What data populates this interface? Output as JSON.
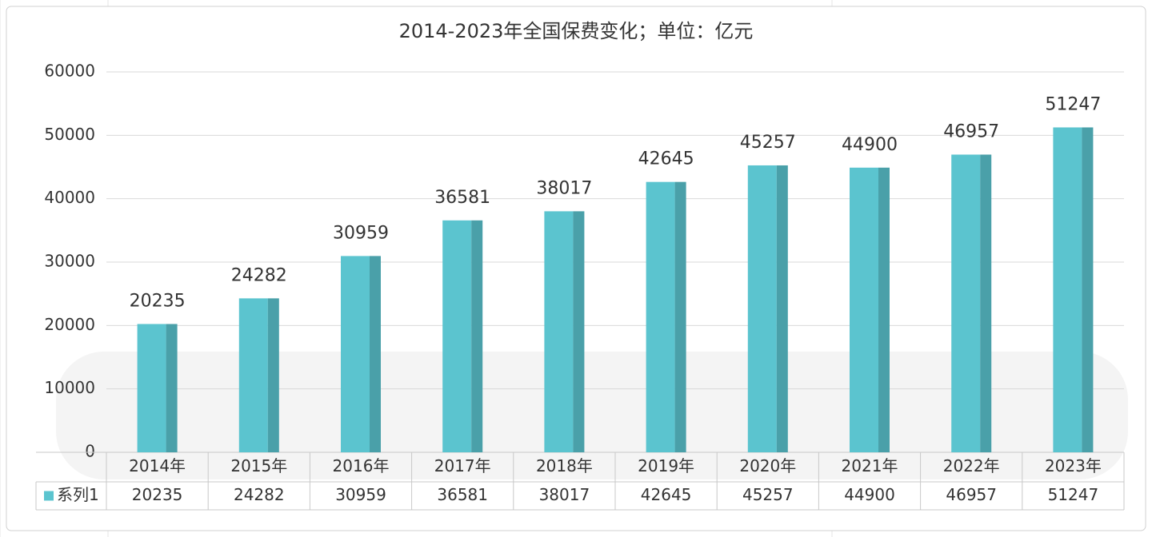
{
  "chart_data": {
    "type": "bar",
    "title": "2014-2023年全国保费变化；单位：亿元",
    "categories": [
      "2014年",
      "2015年",
      "2016年",
      "2017年",
      "2018年",
      "2019年",
      "2020年",
      "2021年",
      "2022年",
      "2023年"
    ],
    "series": [
      {
        "name": "系列1",
        "color": "#5bc4cf",
        "values": [
          20235,
          24282,
          30959,
          36581,
          38017,
          42645,
          45257,
          44900,
          46957,
          51247
        ]
      }
    ],
    "ylim": [
      0,
      60000
    ],
    "yticks": [
      0,
      10000,
      20000,
      30000,
      40000,
      50000,
      60000
    ],
    "grid": true
  }
}
